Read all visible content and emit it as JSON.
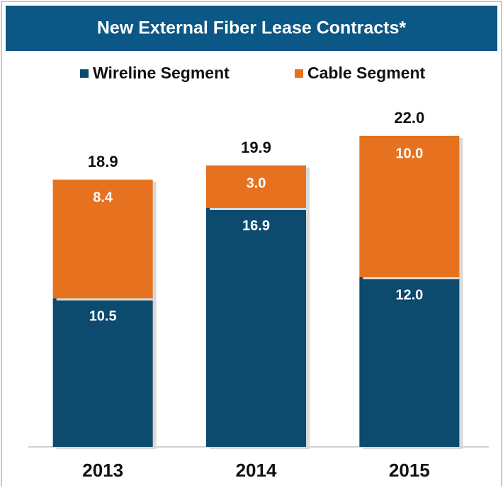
{
  "chart_data": {
    "type": "stacked_bar",
    "title": "New External Fiber Lease Contracts*",
    "categories": [
      "2013",
      "2014",
      "2015"
    ],
    "series": [
      {
        "name": "Wireline Segment",
        "color": "#0c4a6e",
        "values": [
          10.5,
          16.9,
          12
        ],
        "value_labels": [
          "10.5",
          "16.9",
          "12.0"
        ]
      },
      {
        "name": "Cable Segment",
        "color": "#e67220",
        "values": [
          8.4,
          3,
          10
        ],
        "value_labels": [
          "8.4",
          "3.0",
          "10.0"
        ]
      }
    ],
    "totals": [
      18.9,
      19.9,
      22
    ],
    "total_labels": [
      "18.9",
      "19.9",
      "22.0"
    ],
    "ylim": [
      0,
      22
    ],
    "legend": "top"
  }
}
